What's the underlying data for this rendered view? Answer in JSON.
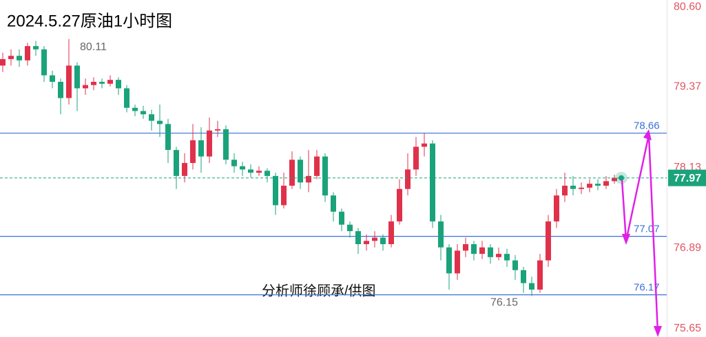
{
  "chart_data": {
    "type": "candlestick",
    "title": "2024.5.27原油1小时图",
    "annotation": "分析师徐顾承/供图",
    "ylim": [
      75.52,
      80.71
    ],
    "yticks": [
      {
        "value": 80.6,
        "label": "80.60"
      },
      79.37,
      78.13,
      76.89,
      75.65
    ],
    "up_color": "#e0314b",
    "down_color": "#1aa37a",
    "open": [
      79.7,
      79.8,
      79.85,
      79.78,
      80.0,
      79.95,
      79.55,
      79.45,
      79.2,
      79.7,
      79.35,
      79.4,
      79.45,
      79.42,
      79.48,
      79.35,
      79.05,
      79.0,
      78.95,
      78.85,
      78.8,
      78.4,
      78.0,
      78.2,
      78.55,
      78.3,
      78.7,
      78.72,
      78.25,
      78.15,
      78.1,
      78.05,
      78.08,
      78.0,
      77.55,
      77.85,
      78.25,
      77.9,
      78.0,
      78.3,
      77.7,
      77.45,
      77.25,
      77.15,
      76.95,
      77.0,
      77.05,
      76.95,
      77.3,
      77.8,
      78.1,
      78.45,
      78.5,
      77.3,
      76.9,
      76.5,
      76.85,
      76.95,
      76.8,
      76.9,
      76.75,
      76.8,
      76.7,
      76.55,
      76.35,
      76.25,
      76.7,
      77.3,
      77.7,
      77.85,
      77.8,
      77.82,
      77.88,
      77.85,
      77.92
    ],
    "high": [
      79.9,
      79.95,
      79.95,
      80.05,
      80.08,
      80.0,
      79.62,
      79.5,
      80.11,
      79.75,
      79.5,
      79.52,
      79.5,
      79.55,
      79.52,
      79.4,
      79.1,
      79.08,
      79.02,
      79.1,
      78.88,
      78.45,
      78.35,
      78.8,
      78.75,
      78.9,
      78.85,
      78.78,
      78.35,
      78.22,
      78.18,
      78.15,
      78.12,
      78.05,
      78.05,
      78.38,
      78.3,
      78.4,
      78.4,
      78.35,
      77.75,
      77.5,
      77.3,
      77.2,
      77.1,
      77.15,
      77.1,
      77.4,
      77.95,
      78.35,
      78.6,
      78.66,
      78.55,
      77.4,
      76.95,
      76.95,
      77.05,
      77.0,
      77.0,
      76.95,
      76.9,
      76.88,
      76.78,
      76.6,
      76.45,
      76.8,
      77.4,
      77.8,
      78.05,
      78.0,
      77.9,
      77.95,
      77.95,
      78.0,
      78.02
    ],
    "low": [
      79.6,
      79.7,
      79.68,
      79.7,
      79.85,
      79.45,
      79.35,
      78.95,
      79.1,
      79.0,
      79.25,
      79.32,
      79.35,
      79.38,
      79.25,
      78.98,
      78.92,
      78.88,
      78.7,
      78.6,
      78.2,
      77.8,
      77.9,
      78.1,
      78.05,
      78.2,
      78.6,
      78.18,
      78.05,
      78.0,
      77.98,
      78.0,
      77.9,
      77.4,
      77.5,
      77.8,
      77.8,
      77.75,
      77.95,
      77.6,
      77.3,
      77.15,
      77.05,
      76.8,
      76.85,
      76.9,
      76.85,
      76.9,
      77.25,
      77.7,
      78.0,
      78.3,
      77.2,
      76.7,
      76.25,
      76.4,
      76.75,
      76.7,
      76.72,
      76.65,
      76.7,
      76.6,
      76.4,
      76.2,
      76.15,
      76.2,
      76.6,
      77.2,
      77.6,
      77.7,
      77.72,
      77.75,
      77.78,
      77.8,
      77.88
    ],
    "close": [
      79.8,
      79.85,
      79.78,
      80.0,
      79.95,
      79.55,
      79.45,
      79.2,
      79.7,
      79.35,
      79.4,
      79.45,
      79.42,
      79.48,
      79.35,
      79.05,
      79.0,
      78.95,
      78.85,
      78.8,
      78.4,
      78.0,
      78.2,
      78.55,
      78.3,
      78.7,
      78.72,
      78.25,
      78.15,
      78.1,
      78.05,
      78.08,
      78.0,
      77.55,
      77.85,
      78.25,
      77.9,
      78.0,
      78.3,
      77.7,
      77.45,
      77.25,
      77.15,
      76.95,
      77.0,
      77.05,
      76.95,
      77.3,
      77.8,
      78.1,
      78.45,
      78.5,
      77.3,
      76.9,
      76.5,
      76.85,
      76.95,
      76.8,
      76.9,
      76.75,
      76.8,
      76.7,
      76.55,
      76.35,
      76.25,
      76.7,
      77.3,
      77.7,
      77.85,
      77.8,
      77.82,
      77.88,
      77.85,
      77.92,
      77.97
    ],
    "levels": [
      {
        "value": 78.66,
        "label": "78.66"
      },
      {
        "value": 77.07,
        "label": "77.07"
      },
      {
        "value": 76.17,
        "label": "76.17"
      }
    ],
    "level_color": "#3b6fd8",
    "extremes": [
      {
        "value": 80.11,
        "label": "80.11",
        "index": 8
      },
      {
        "value": 76.15,
        "label": "76.15",
        "index": 64
      }
    ],
    "current": {
      "value": 77.97,
      "label": "77.97"
    }
  }
}
